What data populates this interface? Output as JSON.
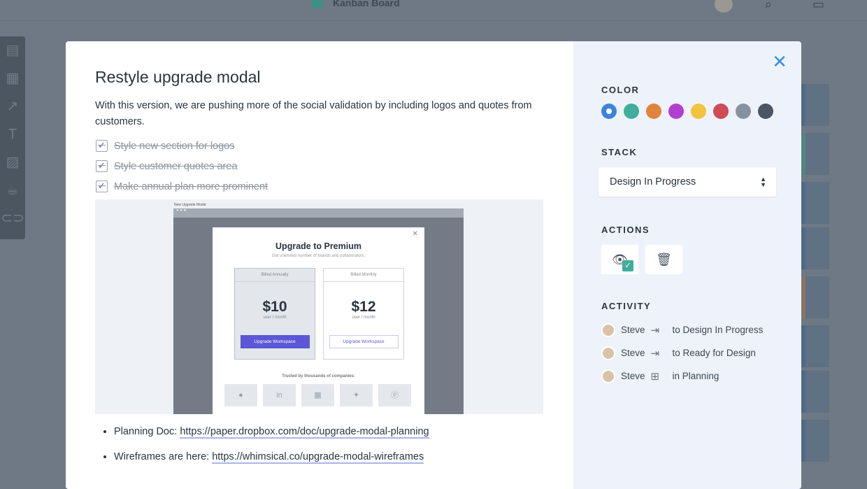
{
  "header": {
    "board_title": "Kanban Board"
  },
  "card": {
    "title": "Restyle upgrade modal",
    "description": "With this version, we are pushing more of the social validation by including logos and quotes from customers.",
    "checklist": [
      {
        "label": "Style new section for logos",
        "checked": true
      },
      {
        "label": "Style customer quotes area",
        "checked": true
      },
      {
        "label": "Make annual plan more prominent",
        "checked": true
      }
    ],
    "attachment": {
      "caption": "New Upgrade Modal",
      "title": "Upgrade to Premium",
      "subtitle": "Get unlimited number of boards and collaborators.",
      "plans": [
        {
          "header": "Billed Annually",
          "price": "$10",
          "unit": "user / month",
          "button": "Upgrade Workspace"
        },
        {
          "header": "Billed Monthly",
          "price": "$12",
          "unit": "user / month",
          "button": "Upgrade Workspace"
        }
      ],
      "trust": "Trusted by thousands of companies:",
      "logos": [
        "apple-icon",
        "linkedin-icon",
        "windows-icon",
        "twitter-icon",
        "pinterest-icon"
      ]
    },
    "links": [
      {
        "label": "Planning Doc: ",
        "url": "https://paper.dropbox.com/doc/upgrade-modal-planning"
      },
      {
        "label": "Wireframes are here: ",
        "url": "https://whimsical.co/upgrade-modal-wireframes"
      }
    ]
  },
  "sidebar": {
    "color_label": "COLOR",
    "colors": [
      "#3d84d9",
      "#3fae9a",
      "#e0843c",
      "#b23fd0",
      "#f1c33f",
      "#d04a57",
      "#8792a0",
      "#4a5663"
    ],
    "selected_color": "#3d84d9",
    "stack_label": "STACK",
    "stack_value": "Design In Progress",
    "actions_label": "ACTIONS",
    "activity_label": "ACTIVITY",
    "activity": [
      {
        "user": "Steve",
        "icon": "move-icon",
        "text": "to Design In Progress"
      },
      {
        "user": "Steve",
        "icon": "move-icon",
        "text": "to Ready for Design"
      },
      {
        "user": "Steve",
        "icon": "add-icon",
        "text": "in Planning"
      }
    ]
  }
}
